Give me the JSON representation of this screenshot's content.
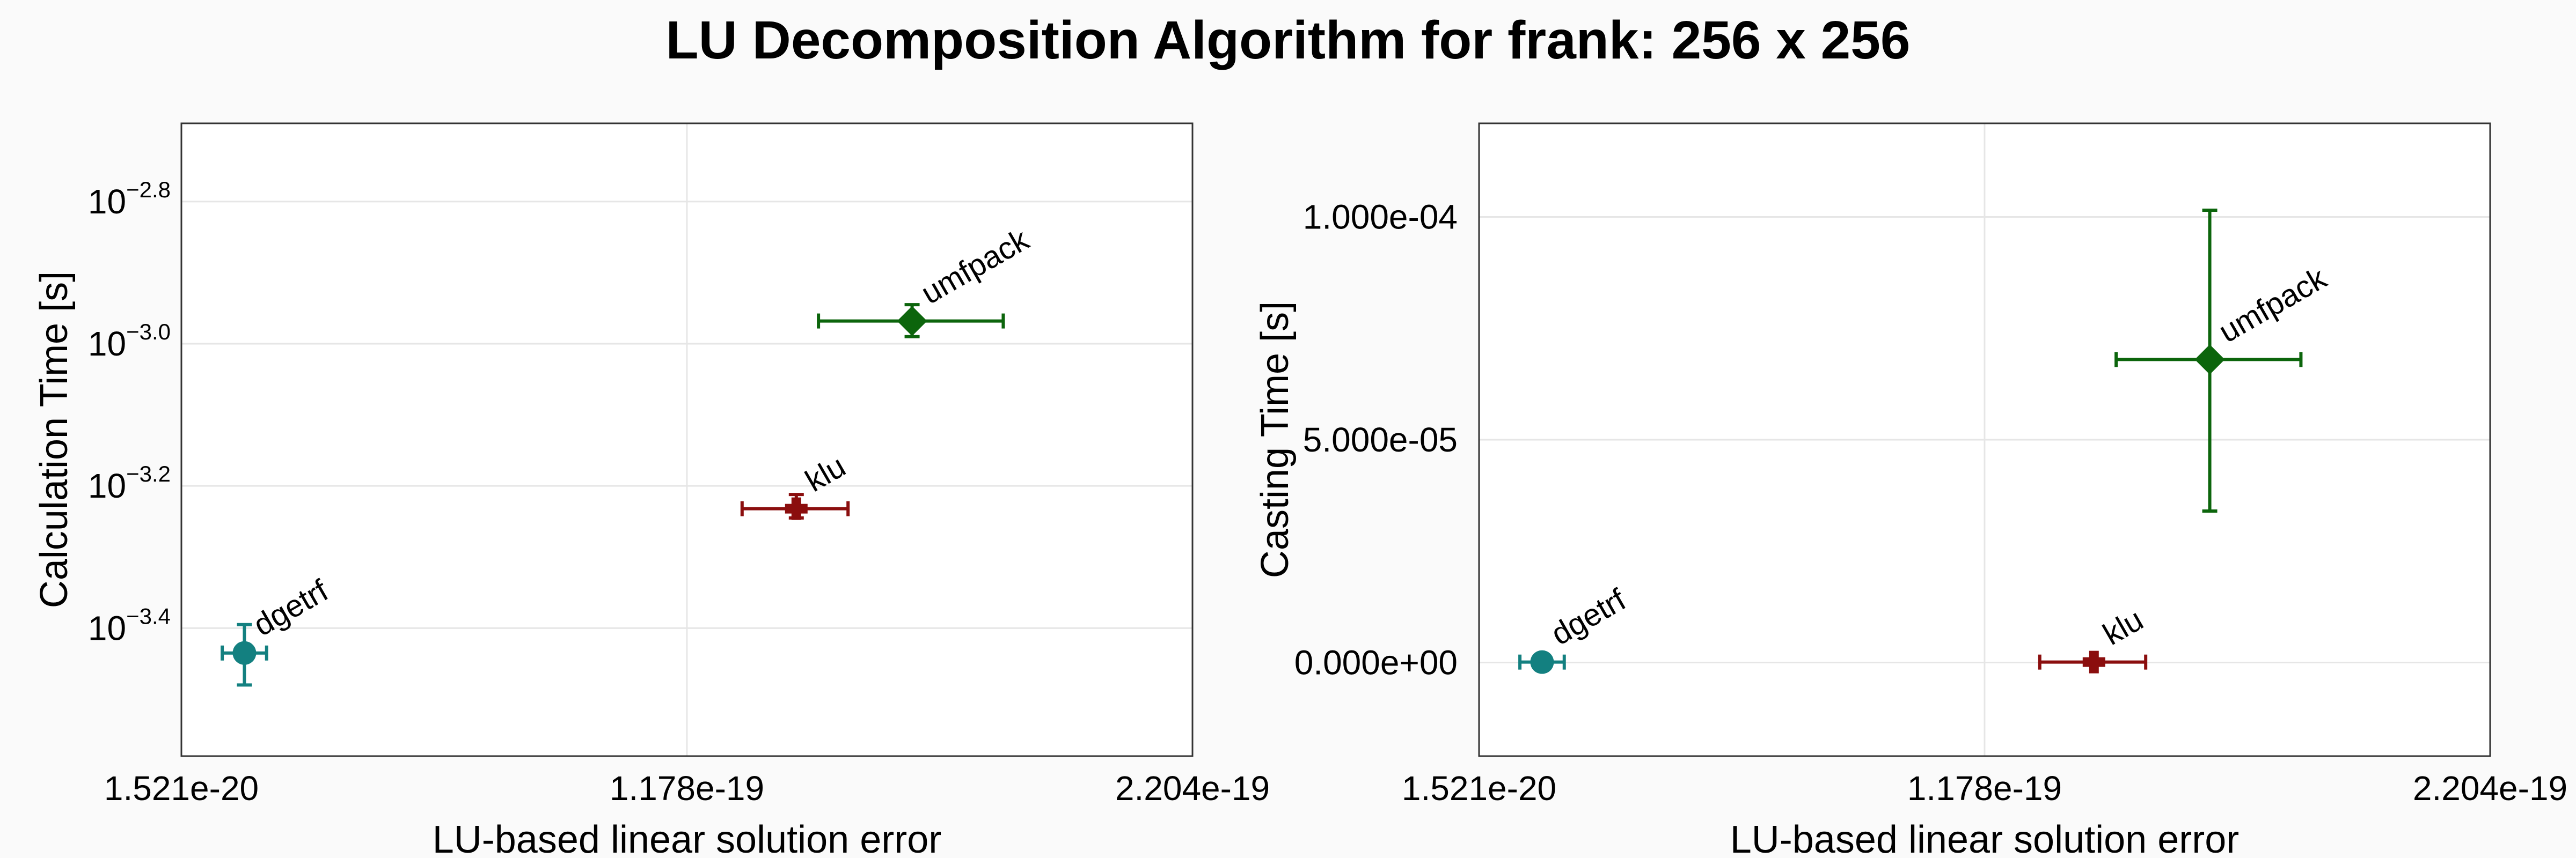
{
  "title": "LU Decomposition Algorithm for frank: 256 x 256",
  "colors": {
    "dgetrf": "#138080",
    "klu": "#8b0e0e",
    "umfpack": "#0c650c",
    "grid": "#e6e6e6",
    "frame": "#333333"
  },
  "chart_data": [
    {
      "type": "scatter",
      "xlabel": "LU-based linear solution error",
      "ylabel": "Calculation Time [s]",
      "xlim": [
        1.521e-20,
        2.204e-19
      ],
      "x_ticks": [
        "1.521e-20",
        "1.178e-19",
        "2.204e-19"
      ],
      "x_tick_values": [
        1.521e-20,
        1.178e-19,
        2.204e-19
      ],
      "y_scale": "log",
      "ylim_log10": [
        -3.58,
        -2.69
      ],
      "y_ticks": [
        {
          "value_log10": -2.8,
          "base": "10",
          "exp": "−2.8"
        },
        {
          "value_log10": -3.0,
          "base": "10",
          "exp": "−3.0"
        },
        {
          "value_log10": -3.2,
          "base": "10",
          "exp": "−3.2"
        },
        {
          "value_log10": -3.4,
          "base": "10",
          "exp": "−3.4"
        }
      ],
      "grid": true,
      "points": [
        {
          "label": "dgetrf",
          "marker": "circle",
          "x": 2.8e-20,
          "x_err": [
            2.35e-20,
            3.25e-20
          ],
          "y_log10": -3.435,
          "y_err_log10": [
            -3.48,
            -3.395
          ]
        },
        {
          "label": "klu",
          "marker": "cross",
          "x": 1.4e-19,
          "x_err": [
            1.29e-19,
            1.505e-19
          ],
          "y_log10": -3.232,
          "y_err_log10": [
            -3.245,
            -3.212
          ]
        },
        {
          "label": "umfpack",
          "marker": "diamond",
          "x": 1.635e-19,
          "x_err": [
            1.445e-19,
            1.82e-19
          ],
          "y_log10": -2.968,
          "y_err_log10": [
            -2.99,
            -2.945
          ]
        }
      ]
    },
    {
      "type": "scatter",
      "xlabel": "LU-based linear solution error",
      "ylabel": "Casting Time [s]",
      "xlim": [
        1.521e-20,
        2.204e-19
      ],
      "x_ticks": [
        "1.521e-20",
        "1.178e-19",
        "2.204e-19"
      ],
      "x_tick_values": [
        1.521e-20,
        1.178e-19,
        2.204e-19
      ],
      "y_scale": "linear",
      "ylim": [
        -2.1e-05,
        0.000121
      ],
      "y_ticks": [
        "0.000e+00",
        "5.000e-05",
        "1.000e-04"
      ],
      "y_tick_values": [
        0,
        5e-05,
        0.0001
      ],
      "grid": true,
      "points": [
        {
          "label": "dgetrf",
          "marker": "circle",
          "x": 2.8e-20,
          "x_err": [
            2.35e-20,
            3.25e-20
          ],
          "y": 1e-07,
          "y_err": [
            0,
            3e-07
          ]
        },
        {
          "label": "klu",
          "marker": "cross",
          "x": 1.4e-19,
          "x_err": [
            1.29e-19,
            1.505e-19
          ],
          "y": 1e-07,
          "y_err": [
            0,
            3e-07
          ]
        },
        {
          "label": "umfpack",
          "marker": "diamond",
          "x": 1.635e-19,
          "x_err": [
            1.445e-19,
            1.82e-19
          ],
          "y": 6.8e-05,
          "y_err": [
            3.4e-05,
            0.0001015
          ]
        }
      ]
    }
  ]
}
